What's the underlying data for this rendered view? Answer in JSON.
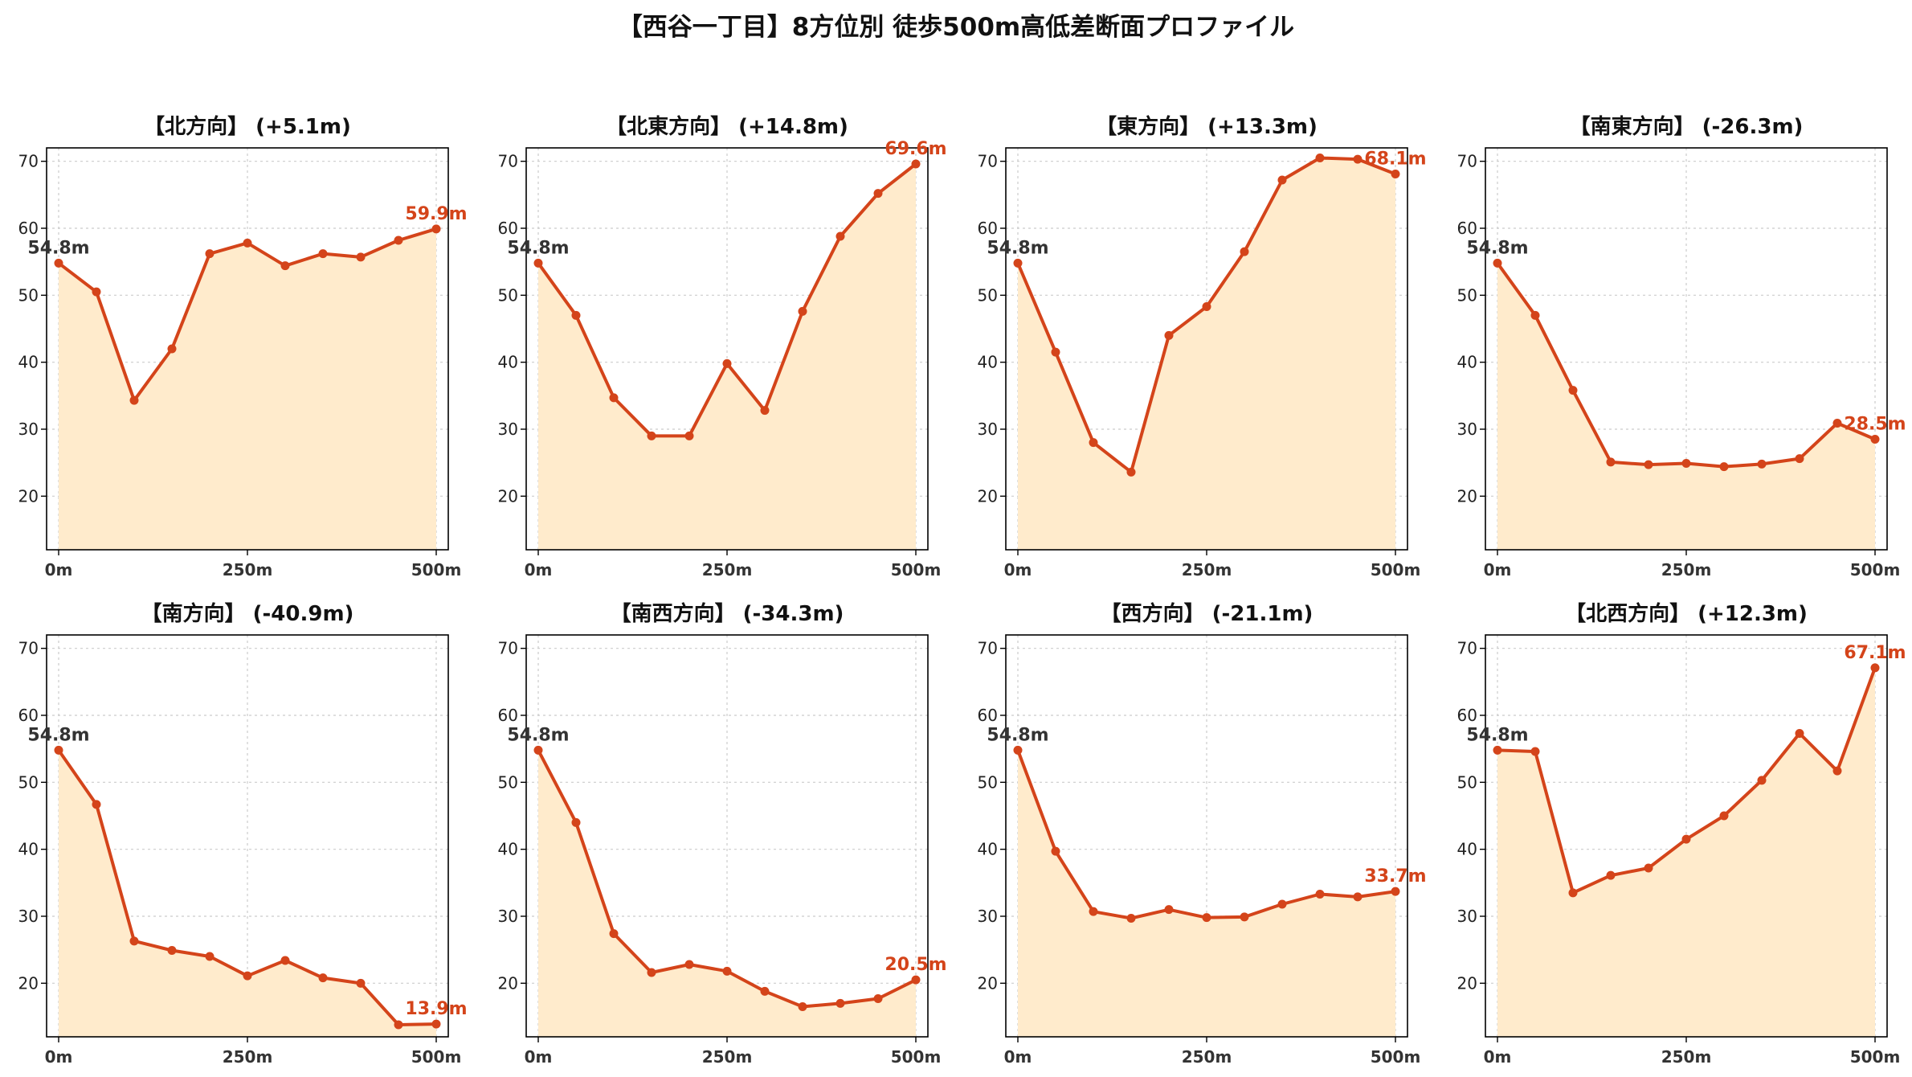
{
  "figure_title": "【西谷一丁目】8方位別 徒歩500m高低差断面プロファイル",
  "colors": {
    "line": "#d4441a",
    "fill": "#ffebcc",
    "grid": "#cccccc",
    "end_label": "#d4441a",
    "start_label": "#333333"
  },
  "chart_data": [
    {
      "type": "area",
      "title": "【北方向】 (+5.1m)",
      "x": [
        0,
        50,
        100,
        150,
        200,
        250,
        300,
        350,
        400,
        450,
        500
      ],
      "values": [
        54.8,
        50.5,
        34.3,
        42.0,
        56.2,
        57.8,
        54.4,
        56.2,
        55.7,
        58.2,
        59.9
      ],
      "xticks": [
        "0m",
        "250m",
        "500m"
      ],
      "yticks": [
        "20",
        "30",
        "40",
        "50",
        "60",
        "70"
      ],
      "ylim": [
        12,
        72
      ],
      "start_label": "54.8m",
      "end_label": "59.9m",
      "grid": true
    },
    {
      "type": "area",
      "title": "【北東方向】 (+14.8m)",
      "x": [
        0,
        50,
        100,
        150,
        200,
        250,
        300,
        350,
        400,
        450,
        500
      ],
      "values": [
        54.8,
        47.0,
        34.7,
        29.0,
        29.0,
        39.8,
        32.8,
        47.6,
        58.8,
        65.2,
        69.6
      ],
      "xticks": [
        "0m",
        "250m",
        "500m"
      ],
      "yticks": [
        "20",
        "30",
        "40",
        "50",
        "60",
        "70"
      ],
      "ylim": [
        12,
        72
      ],
      "start_label": "54.8m",
      "end_label": "69.6m",
      "grid": true
    },
    {
      "type": "area",
      "title": "【東方向】 (+13.3m)",
      "x": [
        0,
        50,
        100,
        150,
        200,
        250,
        300,
        350,
        400,
        450,
        500
      ],
      "values": [
        54.8,
        41.5,
        28.0,
        23.6,
        44.0,
        48.3,
        56.5,
        67.2,
        70.5,
        70.3,
        68.1
      ],
      "xticks": [
        "0m",
        "250m",
        "500m"
      ],
      "yticks": [
        "20",
        "30",
        "40",
        "50",
        "60",
        "70"
      ],
      "ylim": [
        12,
        72
      ],
      "start_label": "54.8m",
      "end_label": "68.1m",
      "grid": true
    },
    {
      "type": "area",
      "title": "【南東方向】 (-26.3m)",
      "x": [
        0,
        50,
        100,
        150,
        200,
        250,
        300,
        350,
        400,
        450,
        500
      ],
      "values": [
        54.8,
        47.0,
        35.8,
        25.1,
        24.7,
        24.9,
        24.4,
        24.8,
        25.6,
        30.9,
        28.5
      ],
      "xticks": [
        "0m",
        "250m",
        "500m"
      ],
      "yticks": [
        "20",
        "30",
        "40",
        "50",
        "60",
        "70"
      ],
      "ylim": [
        12,
        72
      ],
      "start_label": "54.8m",
      "end_label": "28.5m",
      "grid": true
    },
    {
      "type": "area",
      "title": "【南方向】 (-40.9m)",
      "x": [
        0,
        50,
        100,
        150,
        200,
        250,
        300,
        350,
        400,
        450,
        500
      ],
      "values": [
        54.8,
        46.7,
        26.3,
        24.9,
        24.0,
        21.1,
        23.4,
        20.8,
        20.0,
        13.8,
        13.9
      ],
      "xticks": [
        "0m",
        "250m",
        "500m"
      ],
      "yticks": [
        "20",
        "30",
        "40",
        "50",
        "60",
        "70"
      ],
      "ylim": [
        12,
        72
      ],
      "start_label": "54.8m",
      "end_label": "13.9m",
      "grid": true
    },
    {
      "type": "area",
      "title": "【南西方向】 (-34.3m)",
      "x": [
        0,
        50,
        100,
        150,
        200,
        250,
        300,
        350,
        400,
        450,
        500
      ],
      "values": [
        54.8,
        44.0,
        27.4,
        21.6,
        22.8,
        21.8,
        18.8,
        16.5,
        17.0,
        17.7,
        20.5
      ],
      "xticks": [
        "0m",
        "250m",
        "500m"
      ],
      "yticks": [
        "20",
        "30",
        "40",
        "50",
        "60",
        "70"
      ],
      "ylim": [
        12,
        72
      ],
      "start_label": "54.8m",
      "end_label": "20.5m",
      "grid": true
    },
    {
      "type": "area",
      "title": "【西方向】 (-21.1m)",
      "x": [
        0,
        50,
        100,
        150,
        200,
        250,
        300,
        350,
        400,
        450,
        500
      ],
      "values": [
        54.8,
        39.7,
        30.7,
        29.7,
        31.0,
        29.8,
        29.9,
        31.8,
        33.3,
        32.9,
        33.7
      ],
      "xticks": [
        "0m",
        "250m",
        "500m"
      ],
      "yticks": [
        "20",
        "30",
        "40",
        "50",
        "60",
        "70"
      ],
      "ylim": [
        12,
        72
      ],
      "start_label": "54.8m",
      "end_label": "33.7m",
      "grid": true
    },
    {
      "type": "area",
      "title": "【北西方向】 (+12.3m)",
      "x": [
        0,
        50,
        100,
        150,
        200,
        250,
        300,
        350,
        400,
        450,
        500
      ],
      "values": [
        54.8,
        54.6,
        33.5,
        36.1,
        37.2,
        41.5,
        45.0,
        50.3,
        57.3,
        51.7,
        67.1
      ],
      "xticks": [
        "0m",
        "250m",
        "500m"
      ],
      "yticks": [
        "20",
        "30",
        "40",
        "50",
        "60",
        "70"
      ],
      "ylim": [
        12,
        72
      ],
      "start_label": "54.8m",
      "end_label": "67.1m",
      "grid": true
    }
  ]
}
